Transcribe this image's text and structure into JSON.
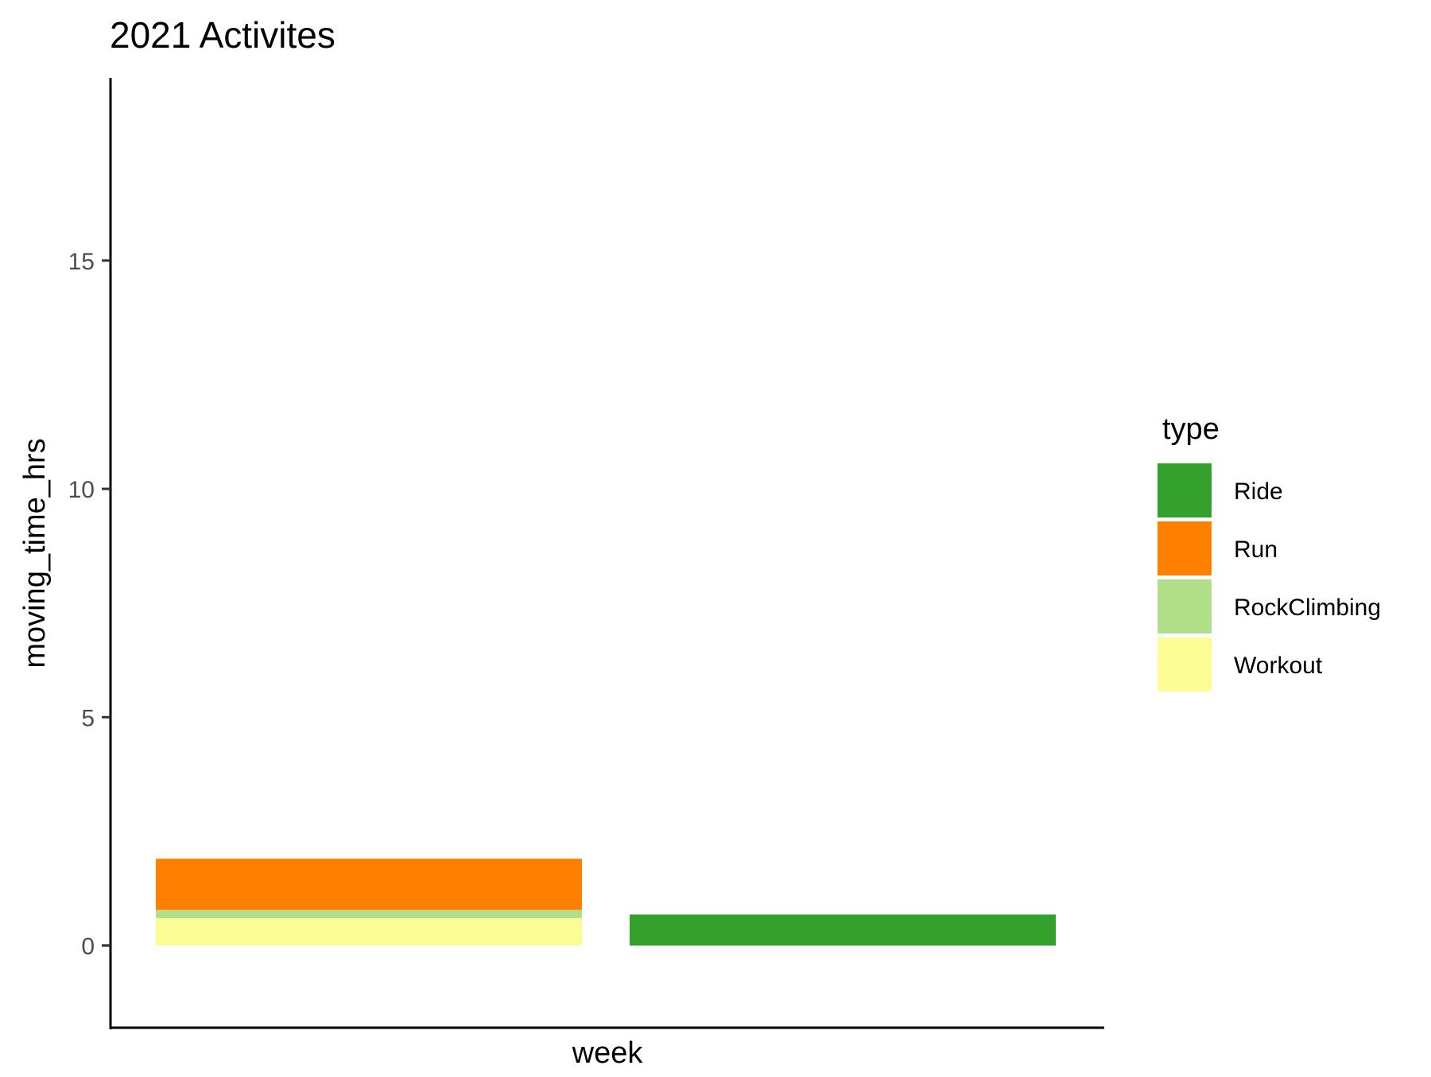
{
  "chart_data": {
    "type": "bar",
    "stacked": true,
    "title": "2021 Activites",
    "xlabel": "week",
    "ylabel": "moving_time_hrs",
    "ylim": [
      -1.8,
      19
    ],
    "yticks": [
      0,
      5,
      10,
      15
    ],
    "grid": false,
    "categories": [
      "",
      ""
    ],
    "series": [
      {
        "name": "Ride",
        "color": "#33a02c",
        "values": [
          0,
          0.68
        ]
      },
      {
        "name": "Run",
        "color": "#ff7f00",
        "values": [
          1.12,
          0
        ]
      },
      {
        "name": "RockClimbing",
        "color": "#b2df8a",
        "values": [
          0.18,
          0
        ]
      },
      {
        "name": "Workout",
        "color": "#fcfc94",
        "values": [
          0.6,
          0
        ]
      }
    ],
    "stack_order_bottom_to_top": [
      "Workout",
      "RockClimbing",
      "Run",
      "Ride"
    ],
    "legend": {
      "title": "type",
      "placement": "right",
      "entries": [
        "Ride",
        "Run",
        "RockClimbing",
        "Workout"
      ]
    }
  }
}
